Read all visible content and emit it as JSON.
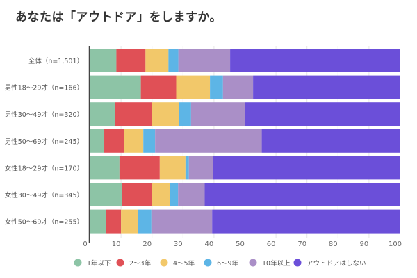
{
  "chart_data": {
    "type": "bar",
    "orientation": "horizontal",
    "stacked": true,
    "title": "あなたは「アウトドア」をしますか。",
    "xlabel": "",
    "ylabel": "",
    "xlim": [
      0,
      100
    ],
    "xticks": [
      "0",
      "10",
      "20",
      "30",
      "40",
      "50",
      "60",
      "70",
      "80",
      "90",
      "100"
    ],
    "grid": true,
    "legend_position": "bottom",
    "categories": [
      "全体（n=1,501）",
      "男性18〜29才（n=166）",
      "男性30〜49才（n=320）",
      "男性50〜69才（n=245）",
      "女性18〜29才（n=170）",
      "女性30〜49才（n=345）",
      "女性50〜69才（n=255）"
    ],
    "series": [
      {
        "name": "1年以下",
        "color": "#8dc4a6",
        "values": [
          8.5,
          16.4,
          8.0,
          4.6,
          9.5,
          10.4,
          5.2
        ]
      },
      {
        "name": "2〜3年",
        "color": "#e05056",
        "values": [
          9.4,
          11.4,
          11.9,
          6.5,
          13.0,
          9.5,
          4.8
        ]
      },
      {
        "name": "4〜5年",
        "color": "#f2c86a",
        "values": [
          7.4,
          10.9,
          8.8,
          6.1,
          8.3,
          5.8,
          5.4
        ]
      },
      {
        "name": "6〜9年",
        "color": "#5db5e6",
        "values": [
          3.2,
          4.2,
          3.9,
          3.8,
          1.1,
          2.7,
          4.4
        ]
      },
      {
        "name": "10年以上",
        "color": "#aa8fc7",
        "values": [
          16.7,
          9.7,
          17.5,
          34.4,
          7.7,
          8.6,
          19.6
        ]
      },
      {
        "name": "アウトドアはしない",
        "color": "#6b4fd9",
        "values": [
          54.8,
          47.4,
          49.9,
          44.6,
          60.4,
          63.0,
          60.6
        ]
      }
    ]
  }
}
